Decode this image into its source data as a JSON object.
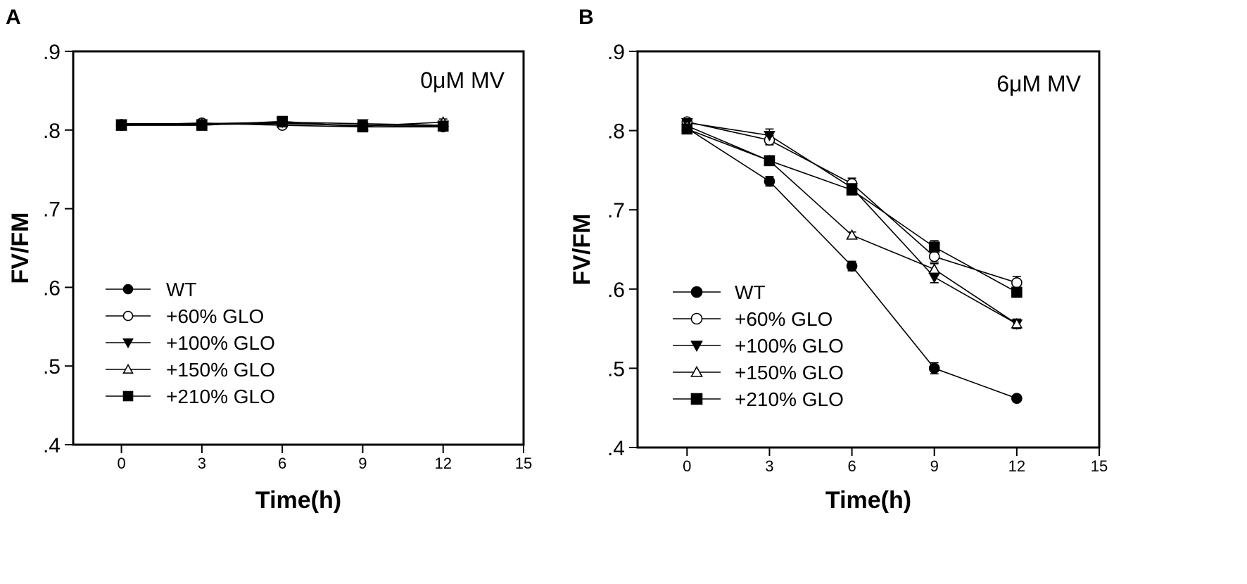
{
  "colors": {
    "ink": "#000000",
    "background": "#ffffff"
  },
  "chart_data": [
    {
      "type": "line",
      "panel_label": "A",
      "condition_label": "0μM MV",
      "xlabel": "Time(h)",
      "ylabel": "FV/FM",
      "xlim": [
        -1.8,
        15
      ],
      "ylim": [
        0.4,
        0.9
      ],
      "xticks": [
        0,
        3,
        6,
        9,
        12,
        15
      ],
      "xtick_labels": [
        "0",
        "3",
        "6",
        "9",
        "12",
        "15"
      ],
      "yticks": [
        0.4,
        0.5,
        0.6,
        0.7,
        0.8,
        0.9
      ],
      "ytick_labels": [
        ".4",
        ".5",
        ".6",
        ".7",
        ".8",
        ".9"
      ],
      "legend_position": "lower-left",
      "x": [
        0,
        3,
        6,
        9,
        12
      ],
      "series": [
        {
          "name": "WT",
          "marker": "circle-filled",
          "values": [
            0.807,
            0.807,
            0.808,
            0.806,
            0.806
          ],
          "errors": [
            0.004,
            0.003,
            0.003,
            0.004,
            0.004
          ]
        },
        {
          "name": "+60% GLO",
          "marker": "circle-open",
          "values": [
            0.806,
            0.809,
            0.806,
            0.804,
            0.804
          ],
          "errors": [
            0.004,
            0.003,
            0.003,
            0.004,
            0.003
          ]
        },
        {
          "name": "+100% GLO",
          "marker": "triangle-down-filled",
          "values": [
            0.808,
            0.808,
            0.81,
            0.808,
            0.806
          ],
          "errors": [
            0.005,
            0.003,
            0.003,
            0.004,
            0.004
          ]
        },
        {
          "name": "+150% GLO",
          "marker": "triangle-up-open",
          "values": [
            0.806,
            0.808,
            0.809,
            0.805,
            0.81
          ],
          "errors": [
            0.004,
            0.003,
            0.003,
            0.004,
            0.004
          ]
        },
        {
          "name": "+210% GLO",
          "marker": "square-filled",
          "values": [
            0.806,
            0.806,
            0.811,
            0.804,
            0.805
          ],
          "errors": [
            0.004,
            0.003,
            0.003,
            0.004,
            0.004
          ]
        }
      ]
    },
    {
      "type": "line",
      "panel_label": "B",
      "condition_label": "6μM MV",
      "xlabel": "Time(h)",
      "ylabel": "FV/FM",
      "xlim": [
        -1.8,
        15
      ],
      "ylim": [
        0.4,
        0.9
      ],
      "xticks": [
        0,
        3,
        6,
        9,
        12,
        15
      ],
      "xtick_labels": [
        "0",
        "3",
        "6",
        "9",
        "12",
        "15"
      ],
      "yticks": [
        0.4,
        0.5,
        0.6,
        0.7,
        0.8,
        0.9
      ],
      "ytick_labels": [
        ".4",
        ".5",
        ".6",
        ".7",
        ".8",
        ".9"
      ],
      "legend_position": "lower-left",
      "x": [
        0,
        3,
        6,
        9,
        12
      ],
      "series": [
        {
          "name": "WT",
          "marker": "circle-filled",
          "values": [
            0.803,
            0.736,
            0.629,
            0.5,
            0.462
          ],
          "errors": [
            0.003,
            0.006,
            0.006,
            0.007,
            0.004
          ]
        },
        {
          "name": "+60% GLO",
          "marker": "circle-open",
          "values": [
            0.811,
            0.788,
            0.733,
            0.641,
            0.608
          ],
          "errors": [
            0.003,
            0.006,
            0.007,
            0.007,
            0.008
          ]
        },
        {
          "name": "+100% GLO",
          "marker": "triangle-down-filled",
          "values": [
            0.81,
            0.794,
            0.728,
            0.615,
            0.556
          ],
          "errors": [
            0.003,
            0.008,
            0.006,
            0.007,
            0.006
          ]
        },
        {
          "name": "+150% GLO",
          "marker": "triangle-up-open",
          "values": [
            0.806,
            0.762,
            0.668,
            0.625,
            0.556
          ],
          "errors": [
            0.003,
            0.006,
            0.004,
            0.007,
            0.006
          ]
        },
        {
          "name": "+210% GLO",
          "marker": "square-filled",
          "values": [
            0.802,
            0.762,
            0.725,
            0.653,
            0.596
          ],
          "errors": [
            0.003,
            0.006,
            0.006,
            0.008,
            0.006
          ]
        }
      ]
    }
  ]
}
